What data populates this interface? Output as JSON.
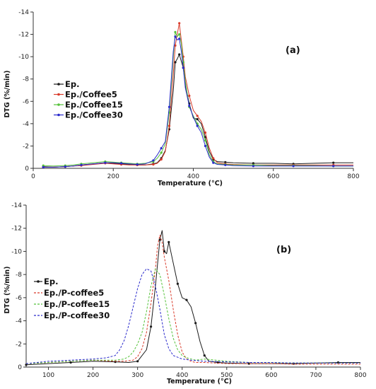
{
  "chart_data": [
    {
      "type": "line",
      "panel_label": "(a)",
      "xlabel": "Temperature (°C)",
      "ylabel": "DTG (%/min)",
      "xlim": [
        0,
        800
      ],
      "ylim": [
        0,
        -14
      ],
      "x_ticks": [
        0,
        200,
        400,
        600,
        800
      ],
      "x_tick_labels": [
        "0",
        "200",
        "400",
        "600",
        "800"
      ],
      "y_ticks": [
        -14,
        -12,
        -10,
        -8,
        -6,
        -4,
        -2,
        0
      ],
      "y_tick_labels": [
        "-14",
        "-12",
        "-10",
        "-8",
        "-6",
        "-4",
        "-2",
        "0"
      ],
      "grid": false,
      "legend_position": "left",
      "series": [
        {
          "name": "Ep.",
          "color": "#1a1a1a",
          "marker": true,
          "x": [
            25,
            50,
            80,
            100,
            120,
            150,
            180,
            200,
            220,
            240,
            260,
            280,
            300,
            310,
            320,
            330,
            340,
            350,
            355,
            360,
            365,
            370,
            375,
            380,
            390,
            400,
            410,
            420,
            430,
            440,
            450,
            460,
            480,
            500,
            550,
            600,
            650,
            700,
            750,
            800
          ],
          "y": [
            -0.15,
            -0.1,
            -0.15,
            -0.2,
            -0.3,
            -0.4,
            -0.5,
            -0.45,
            -0.4,
            -0.35,
            -0.3,
            -0.3,
            -0.4,
            -0.5,
            -0.9,
            -1.6,
            -3.5,
            -7.0,
            -9.5,
            -9.8,
            -10.2,
            -9.6,
            -9.0,
            -7.5,
            -5.8,
            -4.5,
            -4.4,
            -4.0,
            -2.8,
            -1.5,
            -0.8,
            -0.6,
            -0.55,
            -0.5,
            -0.45,
            -0.45,
            -0.4,
            -0.45,
            -0.5,
            -0.5
          ]
        },
        {
          "name": "Ep./Coffee5",
          "color": "#d93a2a",
          "marker": true,
          "x": [
            25,
            50,
            80,
            100,
            120,
            150,
            180,
            200,
            220,
            240,
            260,
            280,
            300,
            310,
            320,
            330,
            340,
            350,
            355,
            360,
            365,
            370,
            375,
            380,
            390,
            400,
            410,
            420,
            430,
            440,
            450,
            460,
            480,
            500,
            550,
            600,
            650,
            700,
            750,
            800
          ],
          "y": [
            -0.1,
            -0.1,
            -0.15,
            -0.2,
            -0.25,
            -0.35,
            -0.45,
            -0.4,
            -0.35,
            -0.3,
            -0.3,
            -0.3,
            -0.35,
            -0.45,
            -0.8,
            -1.5,
            -3.8,
            -8.5,
            -11.0,
            -12.0,
            -13.0,
            -11.5,
            -10.0,
            -8.2,
            -6.5,
            -5.2,
            -4.7,
            -4.2,
            -3.2,
            -1.8,
            -0.9,
            -0.5,
            -0.4,
            -0.35,
            -0.3,
            -0.3,
            -0.3,
            -0.3,
            -0.3,
            -0.3
          ]
        },
        {
          "name": "Ep./Coffee15",
          "color": "#55c23a",
          "marker": true,
          "x": [
            25,
            50,
            80,
            100,
            120,
            150,
            180,
            200,
            220,
            240,
            260,
            280,
            300,
            310,
            320,
            330,
            340,
            350,
            355,
            360,
            365,
            370,
            375,
            380,
            390,
            400,
            410,
            420,
            430,
            440,
            450,
            460,
            480,
            500,
            550,
            600,
            650,
            700,
            750,
            800
          ],
          "y": [
            -0.25,
            -0.2,
            -0.25,
            -0.3,
            -0.4,
            -0.5,
            -0.6,
            -0.55,
            -0.5,
            -0.45,
            -0.4,
            -0.45,
            -0.6,
            -0.9,
            -1.4,
            -2.2,
            -5.0,
            -10.0,
            -12.2,
            -11.8,
            -12.0,
            -11.2,
            -9.5,
            -7.8,
            -5.5,
            -4.7,
            -4.0,
            -3.5,
            -2.5,
            -1.2,
            -0.6,
            -0.4,
            -0.35,
            -0.3,
            -0.3,
            -0.25,
            -0.25,
            -0.25,
            -0.2,
            -0.2
          ]
        },
        {
          "name": "Ep./Coffee30",
          "color": "#2a2acc",
          "marker": true,
          "x": [
            25,
            50,
            80,
            100,
            120,
            150,
            180,
            200,
            220,
            240,
            260,
            280,
            300,
            310,
            320,
            330,
            340,
            350,
            355,
            360,
            365,
            370,
            375,
            380,
            390,
            400,
            410,
            420,
            430,
            440,
            450,
            460,
            480,
            500,
            550,
            600,
            650,
            700,
            750,
            800
          ],
          "y": [
            -0.1,
            -0.1,
            -0.15,
            -0.2,
            -0.3,
            -0.4,
            -0.5,
            -0.5,
            -0.45,
            -0.4,
            -0.35,
            -0.4,
            -0.7,
            -1.2,
            -1.8,
            -2.4,
            -5.5,
            -10.5,
            -11.8,
            -11.5,
            -11.6,
            -10.5,
            -9.0,
            -7.2,
            -5.6,
            -4.6,
            -3.8,
            -3.2,
            -2.0,
            -1.0,
            -0.5,
            -0.35,
            -0.3,
            -0.25,
            -0.2,
            -0.2,
            -0.2,
            -0.2,
            -0.2,
            -0.2
          ]
        }
      ]
    },
    {
      "type": "line",
      "panel_label": "(b)",
      "xlabel": "Temperature (°C)",
      "ylabel": "DTG (%/min)",
      "xlim": [
        50,
        800
      ],
      "ylim": [
        0,
        -14
      ],
      "x_ticks": [
        100,
        200,
        300,
        400,
        500,
        600,
        700,
        800
      ],
      "x_tick_labels": [
        "100",
        "200",
        "300",
        "400",
        "500",
        "600",
        "700",
        "800"
      ],
      "y_ticks": [
        -14,
        -12,
        -10,
        -8,
        -6,
        -4,
        -2,
        0
      ],
      "y_tick_labels": [
        "-14",
        "-12",
        "-10",
        "-8",
        "-6",
        "-4",
        "-2",
        "0"
      ],
      "grid": false,
      "legend_position": "left",
      "series": [
        {
          "name": "Ep.",
          "color": "#1a1a1a",
          "marker": true,
          "dashed": false,
          "x": [
            50,
            100,
            150,
            200,
            250,
            280,
            300,
            320,
            330,
            340,
            350,
            355,
            360,
            365,
            370,
            380,
            390,
            400,
            410,
            420,
            430,
            440,
            450,
            460,
            480,
            500,
            550,
            600,
            650,
            700,
            750,
            800
          ],
          "y": [
            -0.2,
            -0.3,
            -0.4,
            -0.5,
            -0.45,
            -0.4,
            -0.5,
            -1.5,
            -3.5,
            -7.0,
            -11.0,
            -11.8,
            -10.0,
            -9.8,
            -10.8,
            -9.0,
            -7.2,
            -6.0,
            -5.8,
            -5.2,
            -3.8,
            -2.2,
            -1.0,
            -0.5,
            -0.4,
            -0.35,
            -0.3,
            -0.3,
            -0.3,
            -0.35,
            -0.4,
            -0.4
          ]
        },
        {
          "name": "Ep./P-coffee5",
          "color": "#d93a2a",
          "marker": false,
          "dashed": true,
          "x": [
            50,
            100,
            150,
            200,
            250,
            270,
            290,
            300,
            310,
            320,
            330,
            340,
            345,
            350,
            355,
            360,
            370,
            380,
            390,
            400,
            410,
            420,
            430,
            450,
            500,
            550,
            600,
            650,
            700,
            750,
            800
          ],
          "y": [
            -0.3,
            -0.4,
            -0.5,
            -0.6,
            -0.5,
            -0.5,
            -0.6,
            -0.9,
            -1.6,
            -3.0,
            -5.5,
            -8.5,
            -10.5,
            -11.4,
            -10.8,
            -9.5,
            -7.5,
            -5.0,
            -2.8,
            -1.3,
            -0.7,
            -0.5,
            -0.4,
            -0.4,
            -0.3,
            -0.3,
            -0.3,
            -0.25,
            -0.25,
            -0.25,
            -0.25
          ]
        },
        {
          "name": "Ep./P-coffee15",
          "color": "#55c23a",
          "marker": false,
          "dashed": true,
          "x": [
            50,
            100,
            150,
            200,
            250,
            270,
            280,
            290,
            300,
            310,
            320,
            330,
            340,
            350,
            360,
            370,
            380,
            390,
            400,
            410,
            430,
            450,
            500,
            550,
            600,
            650,
            700,
            750,
            800
          ],
          "y": [
            -0.3,
            -0.4,
            -0.5,
            -0.6,
            -0.6,
            -0.7,
            -0.9,
            -1.3,
            -2.0,
            -3.0,
            -4.8,
            -7.0,
            -8.5,
            -8.0,
            -6.2,
            -4.2,
            -2.5,
            -1.5,
            -1.0,
            -0.8,
            -0.6,
            -0.7,
            -0.5,
            -0.4,
            -0.4,
            -0.35,
            -0.35,
            -0.35,
            -0.35
          ]
        },
        {
          "name": "Ep./P-coffee30",
          "color": "#2a2acc",
          "marker": false,
          "dashed": true,
          "x": [
            50,
            100,
            150,
            200,
            230,
            250,
            260,
            270,
            280,
            290,
            300,
            310,
            320,
            330,
            340,
            350,
            360,
            370,
            380,
            400,
            420,
            450,
            500,
            550,
            600,
            650,
            700,
            750,
            800
          ],
          "y": [
            -0.3,
            -0.5,
            -0.6,
            -0.7,
            -0.8,
            -1.0,
            -1.5,
            -2.3,
            -3.6,
            -5.2,
            -6.8,
            -8.0,
            -8.5,
            -8.3,
            -7.0,
            -5.0,
            -2.8,
            -1.6,
            -1.0,
            -0.7,
            -0.6,
            -0.5,
            -0.45,
            -0.4,
            -0.4,
            -0.35,
            -0.35,
            -0.35,
            -0.35
          ]
        }
      ]
    }
  ]
}
